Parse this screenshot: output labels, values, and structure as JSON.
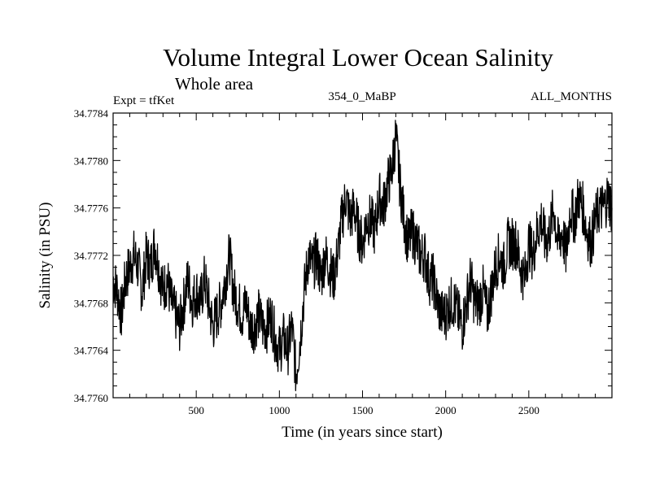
{
  "chart_data": {
    "type": "line",
    "title": "Volume Integral Lower Ocean Salinity",
    "subtitle": "Whole area",
    "expt_label": "Expt = tfKet",
    "center_label": "354_0_MaBP",
    "right_label": "ALL_MONTHS",
    "xlabel": "Time (in years since start)",
    "ylabel": "Salinity (in PSU)",
    "xlim": [
      0,
      3000
    ],
    "ylim": [
      34.776,
      34.7784
    ],
    "x_ticks": [
      500,
      1000,
      1500,
      2000,
      2500
    ],
    "y_ticks": [
      "34.7760",
      "34.7764",
      "34.7768",
      "34.7772",
      "34.7776",
      "34.7780",
      "34.7784"
    ],
    "grid": false,
    "series": [
      {
        "x": [
          0,
          25,
          50,
          75,
          100,
          125,
          150,
          175,
          200,
          225,
          250,
          275,
          300,
          325,
          350,
          375,
          400,
          425,
          450,
          475,
          500,
          525,
          550,
          575,
          600,
          625,
          650,
          675,
          700,
          725,
          750,
          775,
          800,
          825,
          850,
          875,
          900,
          925,
          950,
          975,
          1000,
          1025,
          1050,
          1075,
          1100,
          1125,
          1150,
          1175,
          1200,
          1225,
          1250,
          1275,
          1300,
          1325,
          1350,
          1375,
          1400,
          1425,
          1450,
          1475,
          1500,
          1525,
          1550,
          1575,
          1600,
          1625,
          1650,
          1675,
          1700,
          1725,
          1750,
          1775,
          1800,
          1825,
          1850,
          1875,
          1900,
          1925,
          1950,
          1975,
          2000,
          2025,
          2050,
          2075,
          2100,
          2125,
          2150,
          2175,
          2200,
          2225,
          2250,
          2275,
          2300,
          2325,
          2350,
          2375,
          2400,
          2425,
          2450,
          2475,
          2500,
          2525,
          2550,
          2575,
          2600,
          2625,
          2650,
          2675,
          2700,
          2725,
          2750,
          2775,
          2800,
          2825,
          2850,
          2875,
          2900,
          2925,
          2950,
          2975,
          3000
        ],
        "values": [
          34.777,
          34.7769,
          34.7767,
          34.777,
          34.7771,
          34.7772,
          34.7771,
          34.7769,
          34.7772,
          34.7771,
          34.7773,
          34.7771,
          34.7769,
          34.777,
          34.7768,
          34.7767,
          34.7766,
          34.7768,
          34.777,
          34.7768,
          34.7769,
          34.7768,
          34.777,
          34.7768,
          34.7766,
          34.7767,
          34.7768,
          34.777,
          34.7772,
          34.7769,
          34.7768,
          34.7767,
          34.7768,
          34.7766,
          34.7766,
          34.7767,
          34.7766,
          34.7766,
          34.7767,
          34.7765,
          34.7764,
          34.7765,
          34.7764,
          34.7766,
          34.7762,
          34.7765,
          34.7769,
          34.7772,
          34.7771,
          34.7772,
          34.777,
          34.7772,
          34.7771,
          34.777,
          34.7772,
          34.7775,
          34.7777,
          34.7775,
          34.7776,
          34.7774,
          34.7773,
          34.7775,
          34.7775,
          34.7774,
          34.7777,
          34.7776,
          34.7778,
          34.7779,
          34.7782,
          34.7778,
          34.7775,
          34.7773,
          34.7774,
          34.7773,
          34.7772,
          34.7772,
          34.777,
          34.777,
          34.7768,
          34.7767,
          34.7767,
          34.7768,
          34.7768,
          34.7767,
          34.7766,
          34.7768,
          34.777,
          34.7768,
          34.7768,
          34.7769,
          34.7767,
          34.7769,
          34.7771,
          34.7772,
          34.7771,
          34.7773,
          34.7773,
          34.7773,
          34.7771,
          34.777,
          34.7773,
          34.7772,
          34.7774,
          34.7775,
          34.7773,
          34.7774,
          34.7776,
          34.7773,
          34.7774,
          34.7772,
          34.7776,
          34.7775,
          34.7777,
          34.7776,
          34.7774,
          34.7773,
          34.7775,
          34.7776,
          34.7776,
          34.7777,
          34.7776
        ]
      }
    ]
  }
}
